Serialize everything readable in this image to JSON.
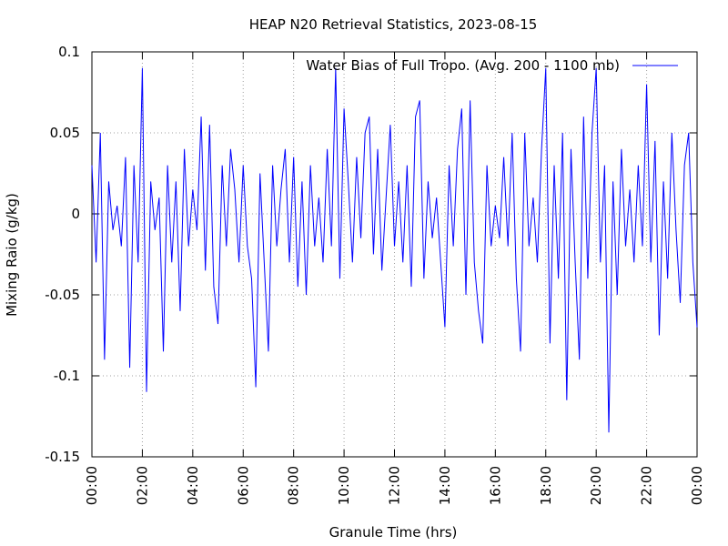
{
  "chart_data": {
    "type": "line",
    "title": "HEAP N20 Retrieval Statistics, 2023-08-15",
    "x_label": "Granule Time (hrs)",
    "y_label": "Mixing Raio (g/kg)",
    "xlim": [
      0,
      1440
    ],
    "ylim": [
      -0.15,
      0.1
    ],
    "xticks": [
      {
        "value": 0,
        "label": "00:00"
      },
      {
        "value": 120,
        "label": "02:00"
      },
      {
        "value": 240,
        "label": "04:00"
      },
      {
        "value": 360,
        "label": "06:00"
      },
      {
        "value": 480,
        "label": "08:00"
      },
      {
        "value": 600,
        "label": "10:00"
      },
      {
        "value": 720,
        "label": "12:00"
      },
      {
        "value": 840,
        "label": "14:00"
      },
      {
        "value": 960,
        "label": "16:00"
      },
      {
        "value": 1080,
        "label": "18:00"
      },
      {
        "value": 1200,
        "label": "20:00"
      },
      {
        "value": 1320,
        "label": "22:00"
      },
      {
        "value": 1440,
        "label": "00:00"
      }
    ],
    "yticks": [
      -0.15,
      -0.1,
      -0.05,
      0,
      0.05,
      0.1
    ],
    "grid": true,
    "legend": "top-right",
    "x": [
      0,
      10,
      20,
      30,
      40,
      50,
      60,
      70,
      80,
      90,
      100,
      110,
      120,
      130,
      140,
      150,
      160,
      170,
      180,
      190,
      200,
      210,
      220,
      230,
      240,
      250,
      260,
      270,
      280,
      290,
      300,
      310,
      320,
      330,
      340,
      350,
      360,
      370,
      380,
      390,
      400,
      410,
      420,
      430,
      440,
      450,
      460,
      470,
      480,
      490,
      500,
      510,
      520,
      530,
      540,
      550,
      560,
      570,
      580,
      590,
      600,
      610,
      620,
      630,
      640,
      650,
      660,
      670,
      680,
      690,
      700,
      710,
      720,
      730,
      740,
      750,
      760,
      770,
      780,
      790,
      800,
      810,
      820,
      830,
      840,
      850,
      860,
      870,
      880,
      890,
      900,
      910,
      920,
      930,
      940,
      950,
      960,
      970,
      980,
      990,
      1000,
      1010,
      1020,
      1030,
      1040,
      1050,
      1060,
      1070,
      1080,
      1090,
      1100,
      1110,
      1120,
      1130,
      1140,
      1150,
      1160,
      1170,
      1180,
      1190,
      1200,
      1210,
      1220,
      1230,
      1240,
      1250,
      1260,
      1270,
      1280,
      1290,
      1300,
      1310,
      1320,
      1330,
      1340,
      1350,
      1360,
      1370,
      1380,
      1390,
      1400,
      1410,
      1420,
      1430,
      1440
    ],
    "series": [
      {
        "name": "Water Bias of Full Tropo. (Avg. 200 - 1100 mb)",
        "color": "#0000ff",
        "values": [
          0.03,
          -0.03,
          0.05,
          -0.09,
          0.02,
          -0.01,
          0.005,
          -0.02,
          0.035,
          -0.095,
          0.03,
          -0.03,
          0.09,
          -0.11,
          0.02,
          -0.01,
          0.01,
          -0.085,
          0.03,
          -0.03,
          0.02,
          -0.06,
          0.04,
          -0.02,
          0.015,
          -0.01,
          0.06,
          -0.035,
          0.055,
          -0.045,
          -0.068,
          0.03,
          -0.02,
          0.04,
          0.015,
          -0.03,
          0.03,
          -0.02,
          -0.04,
          -0.107,
          0.025,
          -0.03,
          -0.085,
          0.03,
          -0.02,
          0.015,
          0.04,
          -0.03,
          0.035,
          -0.045,
          0.02,
          -0.05,
          0.03,
          -0.02,
          0.01,
          -0.03,
          0.04,
          -0.02,
          0.09,
          -0.04,
          0.065,
          0.02,
          -0.03,
          0.035,
          -0.015,
          0.05,
          0.06,
          -0.025,
          0.04,
          -0.035,
          0.01,
          0.055,
          -0.02,
          0.02,
          -0.03,
          0.03,
          -0.045,
          0.06,
          0.07,
          -0.04,
          0.02,
          -0.015,
          0.01,
          -0.03,
          -0.07,
          0.03,
          -0.02,
          0.04,
          0.065,
          -0.05,
          0.07,
          -0.03,
          -0.06,
          -0.08,
          0.03,
          -0.02,
          0.005,
          -0.015,
          0.035,
          -0.02,
          0.05,
          -0.04,
          -0.085,
          0.05,
          -0.02,
          0.01,
          -0.03,
          0.04,
          0.09,
          -0.08,
          0.03,
          -0.04,
          0.05,
          -0.115,
          0.04,
          -0.03,
          -0.09,
          0.06,
          -0.04,
          0.05,
          0.09,
          -0.03,
          0.03,
          -0.135,
          0.02,
          -0.05,
          0.04,
          -0.02,
          0.015,
          -0.03,
          0.03,
          -0.02,
          0.08,
          -0.03,
          0.045,
          -0.075,
          0.02,
          -0.04,
          0.05,
          -0.01,
          -0.055,
          0.03,
          0.05,
          -0.03,
          -0.07
        ]
      }
    ]
  }
}
